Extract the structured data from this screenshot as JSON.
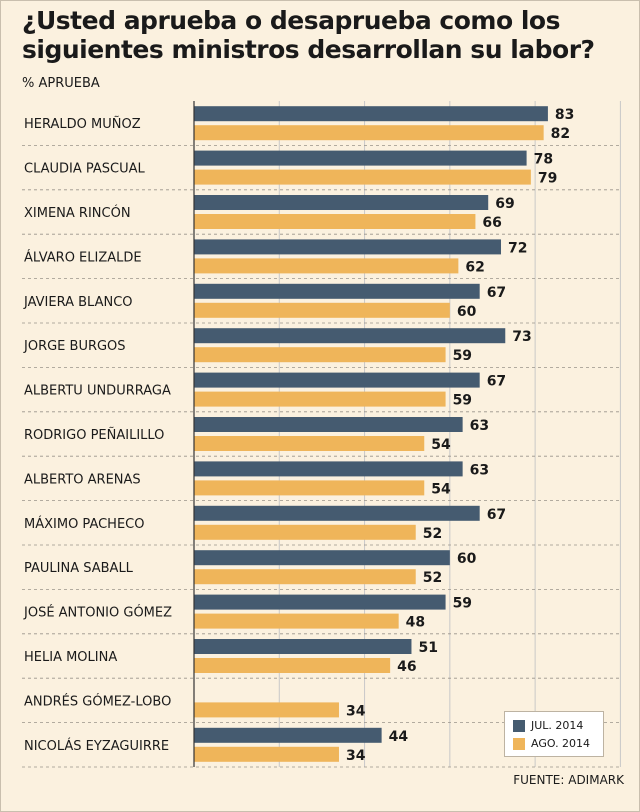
{
  "title": "¿Usted aprueba o desaprueba como los siguientes ministros desarrollan su labor?",
  "subtitle": "% APRUEBA",
  "source": "FUENTE: ADIMARK",
  "colors": {
    "jul": "#455b70",
    "ago": "#efb55a",
    "grid": "#c8c8c8",
    "axis": "#333333"
  },
  "chart_data": {
    "type": "bar",
    "orientation": "horizontal",
    "title": "¿Usted aprueba o desaprueba como los siguientes ministros desarrollan su labor?",
    "ylabel": "% APRUEBA",
    "xlim": [
      0,
      100
    ],
    "grid": true,
    "legend_position": "bottom-right",
    "categories": [
      "HERALDO MUÑOZ",
      "CLAUDIA PASCUAL",
      "XIMENA RINCÓN",
      "ÁLVARO ELIZALDE",
      "JAVIERA BLANCO",
      "JORGE BURGOS",
      "ALBERTU UNDURRAGA",
      "RODRIGO PEÑAILILLO",
      "ALBERTO ARENAS",
      "MÁXIMO PACHECO",
      "PAULINA SABALL",
      "JOSÉ ANTONIO GÓMEZ",
      "HELIA MOLINA",
      "ANDRÉS GÓMEZ-LOBO",
      "NICOLÁS EYZAGUIRRE"
    ],
    "series": [
      {
        "name": "JUL. 2014",
        "values": [
          83,
          78,
          69,
          72,
          67,
          73,
          67,
          63,
          63,
          67,
          60,
          59,
          51,
          null,
          44
        ]
      },
      {
        "name": "AGO. 2014",
        "values": [
          82,
          79,
          66,
          62,
          60,
          59,
          59,
          54,
          54,
          52,
          52,
          48,
          46,
          34,
          34
        ]
      }
    ]
  }
}
